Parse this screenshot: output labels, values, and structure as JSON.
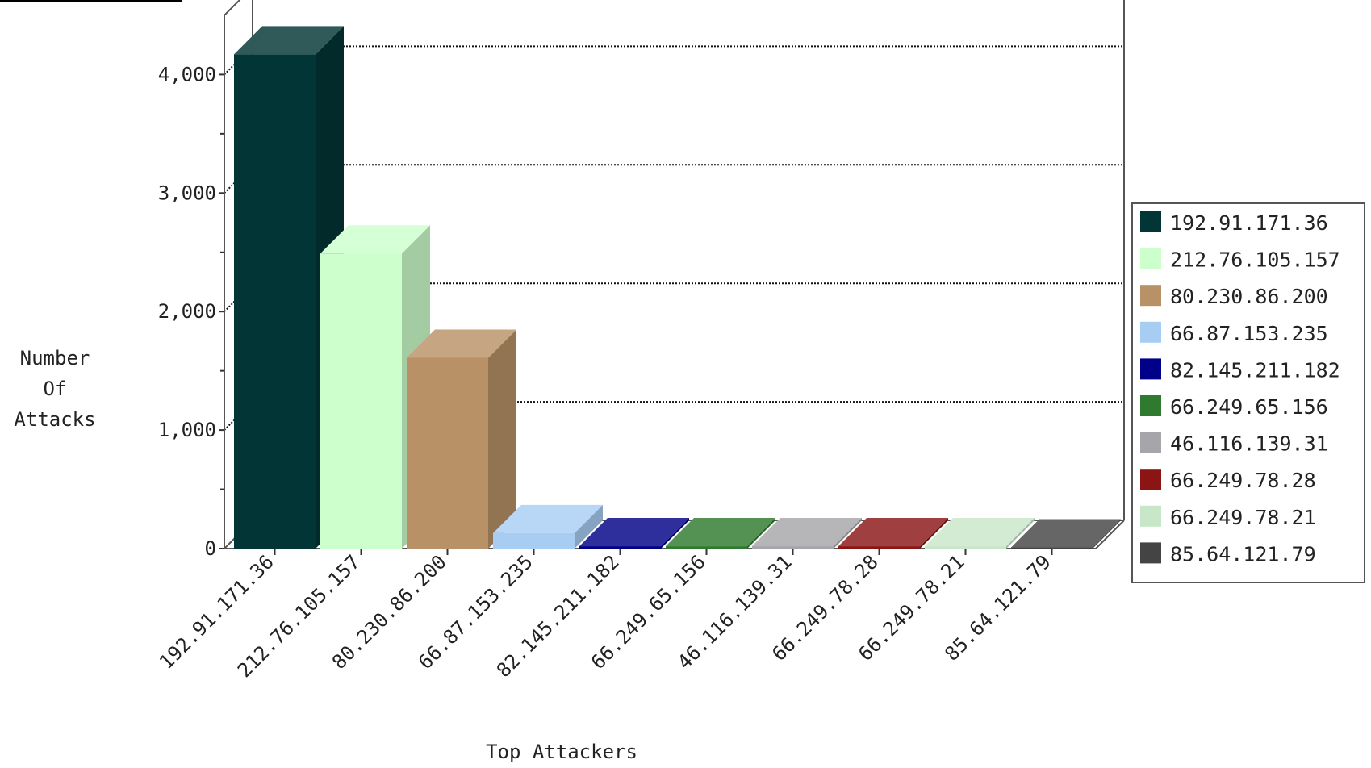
{
  "chart_data": {
    "type": "bar",
    "xlabel": "Top Attackers",
    "ylabel": [
      "Number",
      "Of",
      "Attacks"
    ],
    "categories": [
      "192.91.171.36",
      "212.76.105.157",
      "80.230.86.200",
      "66.87.153.235",
      "82.145.211.182",
      "66.249.65.156",
      "46.116.139.31",
      "66.249.78.28",
      "66.249.78.21",
      "85.64.121.79"
    ],
    "values": [
      4170,
      2490,
      1610,
      130,
      20,
      20,
      20,
      20,
      20,
      10
    ],
    "ylim": [
      0,
      4500
    ],
    "yticks": [
      0,
      1000,
      2000,
      3000,
      4000
    ],
    "ytick_labels": [
      "0",
      "1,000",
      "2,000",
      "3,000",
      "4,000"
    ],
    "grid": true,
    "legend_position": "right",
    "colors": [
      "#023535",
      "#ccffcc",
      "#b89166",
      "#a8cdf3",
      "#000088",
      "#2f7a2f",
      "#a6a6aa",
      "#8b1515",
      "#c8e6c8",
      "#444444"
    ]
  }
}
